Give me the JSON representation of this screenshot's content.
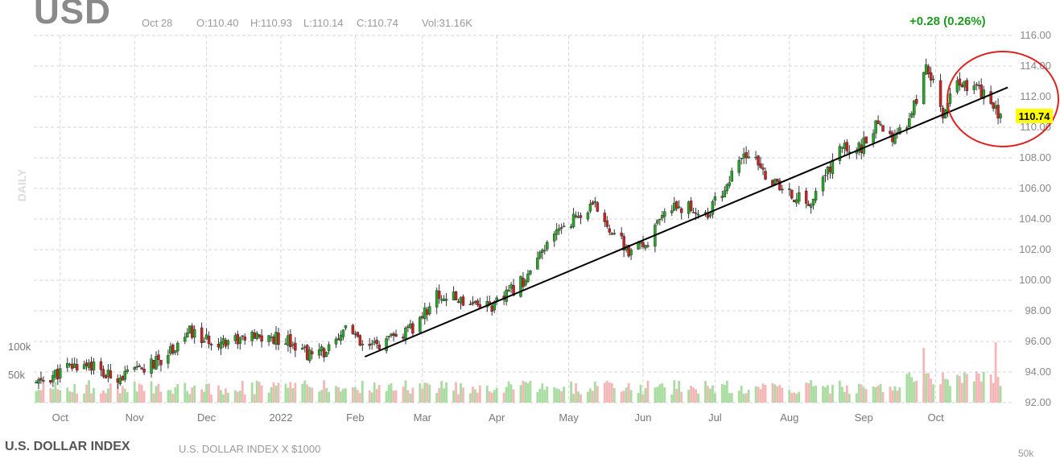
{
  "header": {
    "symbol": "USD",
    "date": "Oct 28",
    "open": "O:110.40",
    "high": "H:110.93",
    "low": "L:110.14",
    "close": "C:110.74",
    "volume": "Vol:31.16K",
    "change": "+0.28 (0.26%)"
  },
  "footer": {
    "title": "U.S. DOLLAR INDEX",
    "subtitle": "U.S. DOLLAR INDEX X $1000",
    "secondary_axis_label": "50k"
  },
  "colors": {
    "up": "#22aa22",
    "down": "#cc2222",
    "vol_up": "#a9dca0",
    "vol_down": "#f4b7b7",
    "price_tag": "#ffff00",
    "circle": "#dd2222"
  },
  "chart_data": {
    "type": "candlestick",
    "period_label": "DAILY",
    "y_axis": {
      "ticks": [
        "116.00",
        "114.00",
        "112.00",
        "110.00",
        "108.00",
        "106.00",
        "104.00",
        "102.00",
        "100.00",
        "98.00",
        "96.00",
        "94.00",
        "92.00"
      ],
      "range": [
        92,
        116
      ]
    },
    "x_axis": {
      "ticks": [
        "Oct",
        "Nov",
        "Dec",
        "2022",
        "Feb",
        "Mar",
        "Apr",
        "May",
        "Jun",
        "Jul",
        "Aug",
        "Sep",
        "Oct"
      ]
    },
    "volume_axis": {
      "ticks": [
        "100k",
        "50k"
      ]
    },
    "last_price_label": "110.74",
    "price_path": [
      [
        "2021-09-21",
        93.2
      ],
      [
        "2021-10-05",
        94.3
      ],
      [
        "2021-10-13",
        94.6
      ],
      [
        "2021-10-20",
        93.7
      ],
      [
        "2021-10-29",
        93.8
      ],
      [
        "2021-11-10",
        94.6
      ],
      [
        "2021-11-24",
        96.6
      ],
      [
        "2021-12-01",
        96.0
      ],
      [
        "2021-12-15",
        96.2
      ],
      [
        "2022-01-04",
        96.2
      ],
      [
        "2022-01-14",
        95.0
      ],
      [
        "2022-01-25",
        95.8
      ],
      [
        "2022-01-28",
        97.2
      ],
      [
        "2022-02-04",
        95.5
      ],
      [
        "2022-02-15",
        96.0
      ],
      [
        "2022-02-25",
        96.8
      ],
      [
        "2022-03-07",
        99.0
      ],
      [
        "2022-03-14",
        98.8
      ],
      [
        "2022-03-23",
        98.6
      ],
      [
        "2022-03-31",
        98.3
      ],
      [
        "2022-04-14",
        100.3
      ],
      [
        "2022-04-28",
        103.6
      ],
      [
        "2022-05-12",
        104.8
      ],
      [
        "2022-05-26",
        101.8
      ],
      [
        "2022-06-01",
        102.2
      ],
      [
        "2022-06-14",
        105.0
      ],
      [
        "2022-06-28",
        104.3
      ],
      [
        "2022-07-14",
        108.3
      ],
      [
        "2022-07-29",
        105.8
      ],
      [
        "2022-08-10",
        105.0
      ],
      [
        "2022-08-22",
        108.6
      ],
      [
        "2022-08-31",
        108.7
      ],
      [
        "2022-09-06",
        110.0
      ],
      [
        "2022-09-13",
        109.5
      ],
      [
        "2022-09-20",
        110.2
      ],
      [
        "2022-09-27",
        114.1
      ],
      [
        "2022-10-04",
        111.0
      ],
      [
        "2022-10-10",
        113.0
      ],
      [
        "2022-10-20",
        112.3
      ],
      [
        "2022-10-28",
        110.74
      ]
    ],
    "trendline": {
      "start": [
        "2022-02-05",
        95.0
      ],
      "end": [
        "2022-10-31",
        112.6
      ]
    },
    "annotations": [
      "trendline",
      "circle around October 2022 price action"
    ],
    "grid": true,
    "legend": "none"
  }
}
